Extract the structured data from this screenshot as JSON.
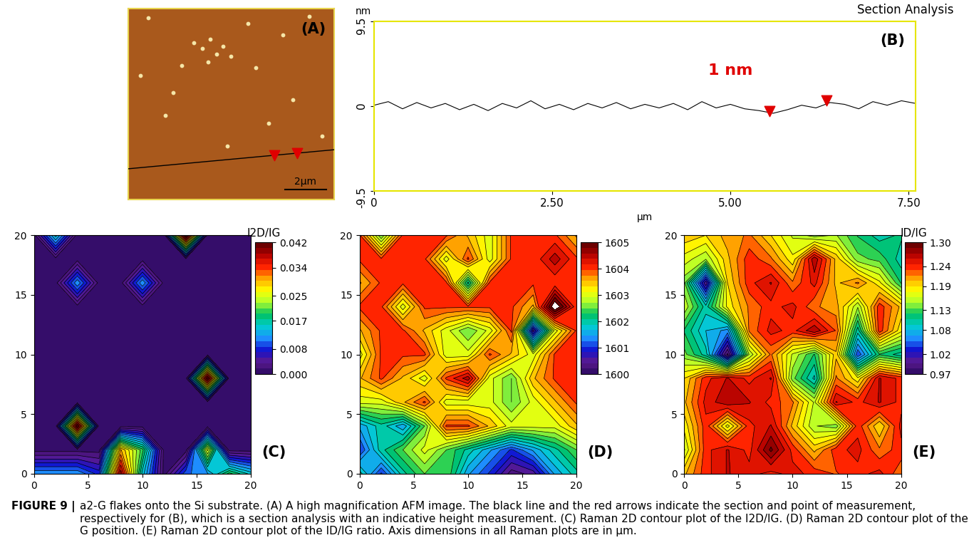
{
  "chart_data": [
    {
      "label": "(A)",
      "type": "image",
      "xlim": [
        0,
        10
      ],
      "ylim": [
        0,
        10
      ],
      "tick_labels": false,
      "particles": {
        "x": [
          1.0,
          3.2,
          3.6,
          4.0,
          4.3,
          4.6,
          3.9,
          5.0,
          2.6,
          6.2,
          7.5,
          8.8,
          5.8,
          1.8,
          2.2,
          6.8,
          8.0,
          9.4,
          4.8,
          0.6
        ],
        "y": [
          9.5,
          8.2,
          7.9,
          8.4,
          7.6,
          8.0,
          7.2,
          7.5,
          7.0,
          6.9,
          8.6,
          9.6,
          9.2,
          4.4,
          5.6,
          4.0,
          5.2,
          3.3,
          2.8,
          6.5
        ]
      },
      "section_line": {
        "x": [
          0,
          10
        ],
        "y": [
          1.6,
          2.6
        ]
      },
      "arrows": {
        "x": [
          7.1,
          8.2
        ]
      },
      "scale_bar": {
        "length": 2,
        "label": "2µm"
      }
    },
    {
      "label": "(B)",
      "type": "line",
      "title": "Section Analysis",
      "ylabel": "nm",
      "xlabel": "µm",
      "x": [
        0.0,
        0.2,
        0.4,
        0.6,
        0.8,
        1.0,
        1.2,
        1.4,
        1.6,
        1.8,
        2.0,
        2.2,
        2.4,
        2.6,
        2.8,
        3.0,
        3.2,
        3.4,
        3.6,
        3.8,
        4.0,
        4.2,
        4.4,
        4.6,
        4.8,
        5.0,
        5.2,
        5.4,
        5.6,
        5.8,
        6.0,
        6.2,
        6.4,
        6.6,
        6.8,
        7.0,
        7.2,
        7.4,
        7.6
      ],
      "values": [
        0.1,
        0.5,
        -0.3,
        0.4,
        -0.2,
        0.3,
        -0.4,
        0.2,
        -0.5,
        0.3,
        -0.2,
        0.6,
        -0.3,
        0.2,
        -0.4,
        0.3,
        -0.2,
        0.4,
        -0.3,
        0.2,
        -0.2,
        0.3,
        -0.4,
        0.5,
        -0.2,
        0.2,
        -0.3,
        -0.5,
        -0.8,
        -0.4,
        0.1,
        -0.2,
        0.4,
        0.2,
        -0.3,
        0.5,
        0.1,
        0.6,
        0.3
      ],
      "color": "#000000",
      "markers": {
        "x": [
          5.55,
          6.35
        ],
        "values": [
          -0.6,
          0.6
        ],
        "color": "#e00000"
      },
      "annotation": {
        "text": "1 nm",
        "x": 5.0,
        "y": 3.2,
        "color": "#e00000"
      },
      "xlim": [
        0,
        7.6
      ],
      "ylim": [
        -9.5,
        9.5
      ],
      "xticks": [
        0,
        {
          "value": 2.5,
          "label": "2.50"
        },
        {
          "value": 5,
          "label": "5.00"
        },
        {
          "value": 7.5,
          "label": "7.50"
        }
      ],
      "yticks": [
        -9.5,
        0,
        9.5
      ]
    },
    {
      "label": "(C)",
      "type": "contour",
      "x": [
        0,
        2,
        4,
        6,
        8,
        10,
        12,
        14,
        16,
        18,
        20
      ],
      "y": [
        0,
        2,
        4,
        6,
        8,
        10,
        12,
        14,
        16,
        18,
        20
      ],
      "z": [
        [
          0.012,
          0.012,
          0.012,
          0.008,
          0.038,
          0.015,
          0.001,
          0.01,
          0.012,
          0.02,
          0.015
        ],
        [
          0.001,
          0.001,
          0.001,
          0.001,
          0.03,
          0.02,
          0.001,
          0.001,
          0.025,
          0.001,
          0.001
        ],
        [
          0.001,
          0.001,
          0.04,
          0.001,
          0.001,
          0.001,
          0.001,
          0.001,
          0.001,
          0.001,
          0.001
        ],
        [
          0.001,
          0.001,
          0.001,
          0.001,
          0.001,
          0.001,
          0.001,
          0.001,
          0.001,
          0.001,
          0.001
        ],
        [
          0.001,
          0.001,
          0.001,
          0.001,
          0.001,
          0.001,
          0.001,
          0.001,
          0.04,
          0.001,
          0.001
        ],
        [
          0.001,
          0.001,
          0.001,
          0.001,
          0.001,
          0.001,
          0.001,
          0.001,
          0.001,
          0.001,
          0.001
        ],
        [
          0.001,
          0.001,
          0.001,
          0.001,
          0.001,
          0.001,
          0.001,
          0.001,
          0.001,
          0.001,
          0.001
        ],
        [
          0.001,
          0.001,
          0.001,
          0.001,
          0.001,
          0.001,
          0.001,
          0.001,
          0.001,
          0.001,
          0.001
        ],
        [
          0.001,
          0.001,
          0.012,
          0.001,
          0.001,
          0.012,
          0.001,
          0.001,
          0.001,
          0.001,
          0.001
        ],
        [
          0.001,
          0.001,
          0.001,
          0.001,
          0.001,
          0.001,
          0.001,
          0.001,
          0.001,
          0.001,
          0.001
        ],
        [
          0.001,
          0.015,
          0.001,
          0.001,
          0.001,
          0.001,
          0.001,
          0.042,
          0.001,
          0.001,
          0.001
        ]
      ],
      "xlim": [
        0,
        20
      ],
      "ylim": [
        0,
        20
      ],
      "xticks": [
        0,
        5,
        10,
        15,
        20
      ],
      "yticks": [
        0,
        5,
        10,
        15,
        20
      ],
      "colorbar": {
        "title": "I2D/IG",
        "range": [
          0,
          0.042
        ],
        "ticks": [
          {
            "value": 0,
            "label": "0.000"
          },
          0.008,
          0.017,
          0.025,
          0.034,
          0.042
        ]
      }
    },
    {
      "label": "(D)",
      "type": "contour",
      "x": [
        0,
        2,
        4,
        6,
        8,
        10,
        12,
        14,
        16,
        18,
        20
      ],
      "y": [
        0,
        2,
        4,
        6,
        8,
        10,
        12,
        14,
        16,
        18,
        20
      ],
      "z": [
        [
          1602,
          1601,
          1602,
          1602.5,
          1602.5,
          1601.5,
          1601,
          1600.3,
          1600.5,
          1601.5,
          1602
        ],
        [
          1601,
          1602,
          1602.5,
          1603,
          1602.5,
          1602,
          1601.5,
          1601,
          1601.5,
          1602,
          1602.5
        ],
        [
          1601.5,
          1602,
          1601.5,
          1602.5,
          1604,
          1604,
          1603.5,
          1603,
          1603,
          1603,
          1603.5
        ],
        [
          1603,
          1603,
          1603.5,
          1604,
          1603,
          1603,
          1603,
          1602.5,
          1603,
          1603.5,
          1604
        ],
        [
          1603.5,
          1604,
          1603.5,
          1603,
          1604,
          1604.5,
          1603,
          1602.5,
          1603.5,
          1604,
          1604
        ],
        [
          1603,
          1604,
          1604,
          1604,
          1603,
          1603,
          1604,
          1603.5,
          1603,
          1604,
          1604
        ],
        [
          1603.5,
          1604,
          1604,
          1603.5,
          1603,
          1602.5,
          1603,
          1604,
          1600.5,
          1603,
          1604
        ],
        [
          1604,
          1604,
          1603,
          1604,
          1604,
          1604,
          1604,
          1604,
          1603.5,
          1605.3,
          1604
        ],
        [
          1603.5,
          1604,
          1604,
          1604,
          1604,
          1602,
          1604,
          1604,
          1604,
          1604,
          1604
        ],
        [
          1604,
          1604,
          1604,
          1604,
          1603,
          1604,
          1603,
          1604,
          1604,
          1604.5,
          1604
        ],
        [
          1604,
          1602.5,
          1604,
          1604,
          1604,
          1603.5,
          1603,
          1604,
          1604,
          1604,
          1603.5
        ]
      ],
      "xlim": [
        0,
        20
      ],
      "ylim": [
        0,
        20
      ],
      "xticks": [
        0,
        5,
        10,
        15,
        20
      ],
      "yticks": [
        0,
        5,
        10,
        15,
        20
      ],
      "colorbar": {
        "range": [
          1600,
          1605
        ],
        "ticks": [
          1600,
          1601,
          1602,
          1603,
          1604,
          1605
        ]
      }
    },
    {
      "label": "(E)",
      "type": "contour",
      "x": [
        0,
        2,
        4,
        6,
        8,
        10,
        12,
        14,
        16,
        18,
        20
      ],
      "y": [
        0,
        2,
        4,
        6,
        8,
        10,
        12,
        14,
        16,
        18,
        20
      ],
      "z": [
        [
          1.2,
          1.24,
          1.26,
          1.25,
          1.24,
          1.25,
          1.24,
          1.23,
          1.24,
          1.25,
          1.22
        ],
        [
          1.16,
          1.24,
          1.26,
          1.24,
          1.29,
          1.24,
          1.2,
          1.24,
          1.25,
          1.22,
          1.24
        ],
        [
          1.18,
          1.24,
          1.17,
          1.24,
          1.26,
          1.2,
          1.15,
          1.14,
          1.24,
          1.19,
          1.25
        ],
        [
          1.2,
          1.25,
          1.27,
          1.26,
          1.24,
          1.22,
          1.16,
          1.26,
          1.24,
          1.26,
          1.24
        ],
        [
          1.19,
          1.24,
          1.26,
          1.24,
          1.26,
          1.14,
          1.09,
          1.22,
          1.18,
          1.26,
          1.24
        ],
        [
          1.14,
          1.1,
          0.98,
          1.15,
          1.22,
          1.16,
          1.12,
          1.2,
          1.04,
          1.12,
          1.1
        ],
        [
          1.12,
          1.08,
          1.06,
          1.22,
          1.25,
          1.24,
          1.27,
          1.23,
          1.1,
          1.24,
          1.18
        ],
        [
          1.16,
          1.1,
          1.18,
          1.22,
          1.24,
          1.25,
          1.22,
          1.21,
          1.15,
          1.24,
          1.2
        ],
        [
          1.14,
          1.0,
          1.19,
          1.24,
          1.26,
          1.22,
          1.25,
          1.2,
          1.22,
          1.18,
          1.12
        ],
        [
          1.17,
          1.15,
          1.2,
          1.24,
          1.22,
          1.18,
          1.27,
          1.2,
          1.14,
          1.13,
          1.1
        ],
        [
          1.2,
          1.19,
          1.21,
          1.22,
          1.19,
          1.16,
          1.14,
          1.15,
          1.12,
          1.1,
          1.11
        ]
      ],
      "xlim": [
        0,
        20
      ],
      "ylim": [
        0,
        20
      ],
      "xticks": [
        0,
        5,
        10,
        15,
        20
      ],
      "yticks": [
        0,
        5,
        10,
        15,
        20
      ],
      "colorbar": {
        "title": "ID/IG",
        "range": [
          0.97,
          1.3
        ],
        "ticks": [
          0.97,
          1.02,
          1.08,
          1.13,
          1.19,
          1.24,
          {
            "value": 1.3,
            "label": "1.30"
          }
        ]
      }
    }
  ],
  "caption": {
    "label": "FIGURE 9 |",
    "text": "a2-G flakes onto the Si substrate. (A) A high magnification AFM image. The black line and the red arrows indicate the section and point of measurement, respectively for (B), which is a section analysis with an indicative height measurement. (C) Raman 2D contour plot of the I2D/IG. (D) Raman 2D contour plot of the G position. (E) Raman 2D contour plot of the ID/IG ratio. Axis dimensions in all Raman plots are in µm."
  }
}
